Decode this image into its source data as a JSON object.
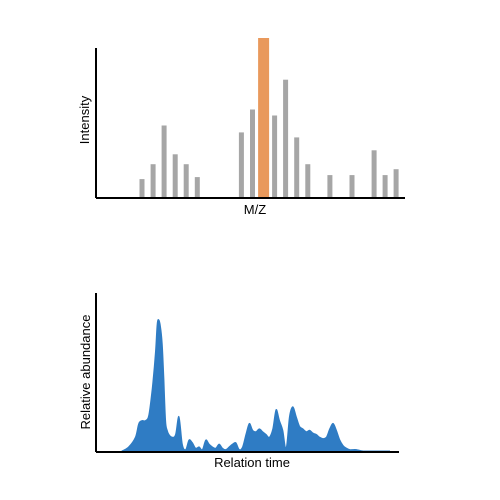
{
  "colors": {
    "axis": "#000000",
    "bar": "#a6a6a6",
    "highlight": "#e9995c",
    "area": "#2f7cc4"
  },
  "chart_data": [
    {
      "type": "bar",
      "title": "",
      "xlabel": "M/Z",
      "ylabel": "Intensity",
      "grid": false,
      "ylim": [
        0,
        160
      ],
      "x": [
        1,
        2,
        3,
        4,
        5,
        6,
        10,
        11,
        12,
        13,
        14,
        15,
        16,
        18,
        20,
        22,
        23,
        24
      ],
      "values": [
        18,
        33,
        72,
        43,
        33,
        20,
        65,
        88,
        160,
        82,
        118,
        60,
        33,
        22,
        22,
        47,
        22,
        28
      ],
      "highlight_index": 8
    },
    {
      "type": "area",
      "title": "",
      "xlabel": "Relation time",
      "ylabel": "Relative abundance",
      "grid": false,
      "ylim": [
        0,
        1
      ],
      "x": [
        0,
        2,
        4,
        5,
        6,
        7,
        8,
        9,
        10,
        10.5,
        11,
        11.5,
        12,
        12.5,
        13,
        13.5,
        14,
        15,
        16,
        17,
        18,
        19,
        20,
        21,
        22,
        23,
        24,
        25,
        26,
        27,
        28,
        29,
        30,
        31,
        32,
        33,
        34,
        35,
        36,
        37,
        38,
        39,
        40,
        41,
        42,
        43,
        44,
        45,
        46,
        47,
        48,
        49,
        50,
        51,
        52,
        53,
        54,
        55,
        56,
        57,
        58,
        59,
        60,
        61,
        62,
        63,
        64,
        65,
        66,
        67,
        68,
        69,
        70,
        72,
        74,
        76,
        80
      ],
      "values": [
        0,
        0.03,
        0.1,
        0.2,
        0.22,
        0.22,
        0.26,
        0.45,
        0.72,
        0.92,
        0.95,
        0.9,
        0.78,
        0.52,
        0.22,
        0.15,
        0.12,
        0.1,
        0.12,
        0.25,
        0.05,
        0.01,
        0.08,
        0.06,
        0.02,
        0.03,
        0.01,
        0.08,
        0.05,
        0.03,
        0.02,
        0.05,
        0.02,
        0.01,
        0.03,
        0.05,
        0.06,
        0.01,
        0.03,
        0.12,
        0.2,
        0.15,
        0.14,
        0.16,
        0.14,
        0.12,
        0.1,
        0.16,
        0.3,
        0.22,
        0.15,
        0.02,
        0.25,
        0.32,
        0.25,
        0.18,
        0.16,
        0.14,
        0.15,
        0.13,
        0.12,
        0.1,
        0.09,
        0.1,
        0.16,
        0.2,
        0.15,
        0.08,
        0.04,
        0.02,
        0.01,
        0.01,
        0.01,
        0,
        0,
        0,
        0
      ]
    }
  ]
}
